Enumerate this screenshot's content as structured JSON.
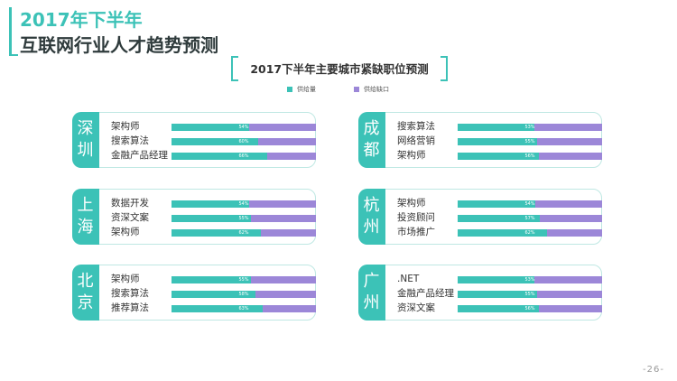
{
  "header": {
    "line1": "2017年下半年",
    "line2": "互联网行业人才趋势预测"
  },
  "page_number": "-26-",
  "colors": {
    "accent": "#3cc2b7",
    "supply": "#3cc2b7",
    "shortage": "#9c87d8"
  },
  "chart_data": {
    "type": "bar",
    "title": "2017下半年主要城市紧缺职位预测",
    "legend": [
      "供给量",
      "供给缺口"
    ],
    "cities": [
      {
        "name": "深圳",
        "chars": [
          "深",
          "圳"
        ],
        "rows": [
          {
            "label": "架构师",
            "value": 54,
            "text": "54%"
          },
          {
            "label": "搜索算法",
            "value": 60,
            "text": "60%"
          },
          {
            "label": "金融产品经理",
            "value": 66,
            "text": "66%"
          }
        ]
      },
      {
        "name": "成都",
        "chars": [
          "成",
          "都"
        ],
        "rows": [
          {
            "label": "搜索算法",
            "value": 53,
            "text": "53%"
          },
          {
            "label": "网络营销",
            "value": 55,
            "text": "55%"
          },
          {
            "label": "架构师",
            "value": 56,
            "text": "56%"
          }
        ]
      },
      {
        "name": "上海",
        "chars": [
          "上",
          "海"
        ],
        "rows": [
          {
            "label": "数据开发",
            "value": 54,
            "text": "54%"
          },
          {
            "label": "资深文案",
            "value": 55,
            "text": "55%"
          },
          {
            "label": "架构师",
            "value": 62,
            "text": "62%"
          }
        ]
      },
      {
        "name": "杭州",
        "chars": [
          "杭",
          "州"
        ],
        "rows": [
          {
            "label": "架构师",
            "value": 54,
            "text": "54%"
          },
          {
            "label": "投资顾问",
            "value": 57,
            "text": "57%"
          },
          {
            "label": "市场推广",
            "value": 62,
            "text": "62%"
          }
        ]
      },
      {
        "name": "北京",
        "chars": [
          "北",
          "京"
        ],
        "rows": [
          {
            "label": "架构师",
            "value": 55,
            "text": "55%"
          },
          {
            "label": "搜索算法",
            "value": 58,
            "text": "58%"
          },
          {
            "label": "推荐算法",
            "value": 63,
            "text": "63%"
          }
        ]
      },
      {
        "name": "广州",
        "chars": [
          "广",
          "州"
        ],
        "rows": [
          {
            "label": ".NET",
            "value": 53,
            "text": "53%"
          },
          {
            "label": "金融产品经理",
            "value": 55,
            "text": "55%"
          },
          {
            "label": "资深文案",
            "value": 56,
            "text": "56%"
          }
        ]
      }
    ]
  }
}
